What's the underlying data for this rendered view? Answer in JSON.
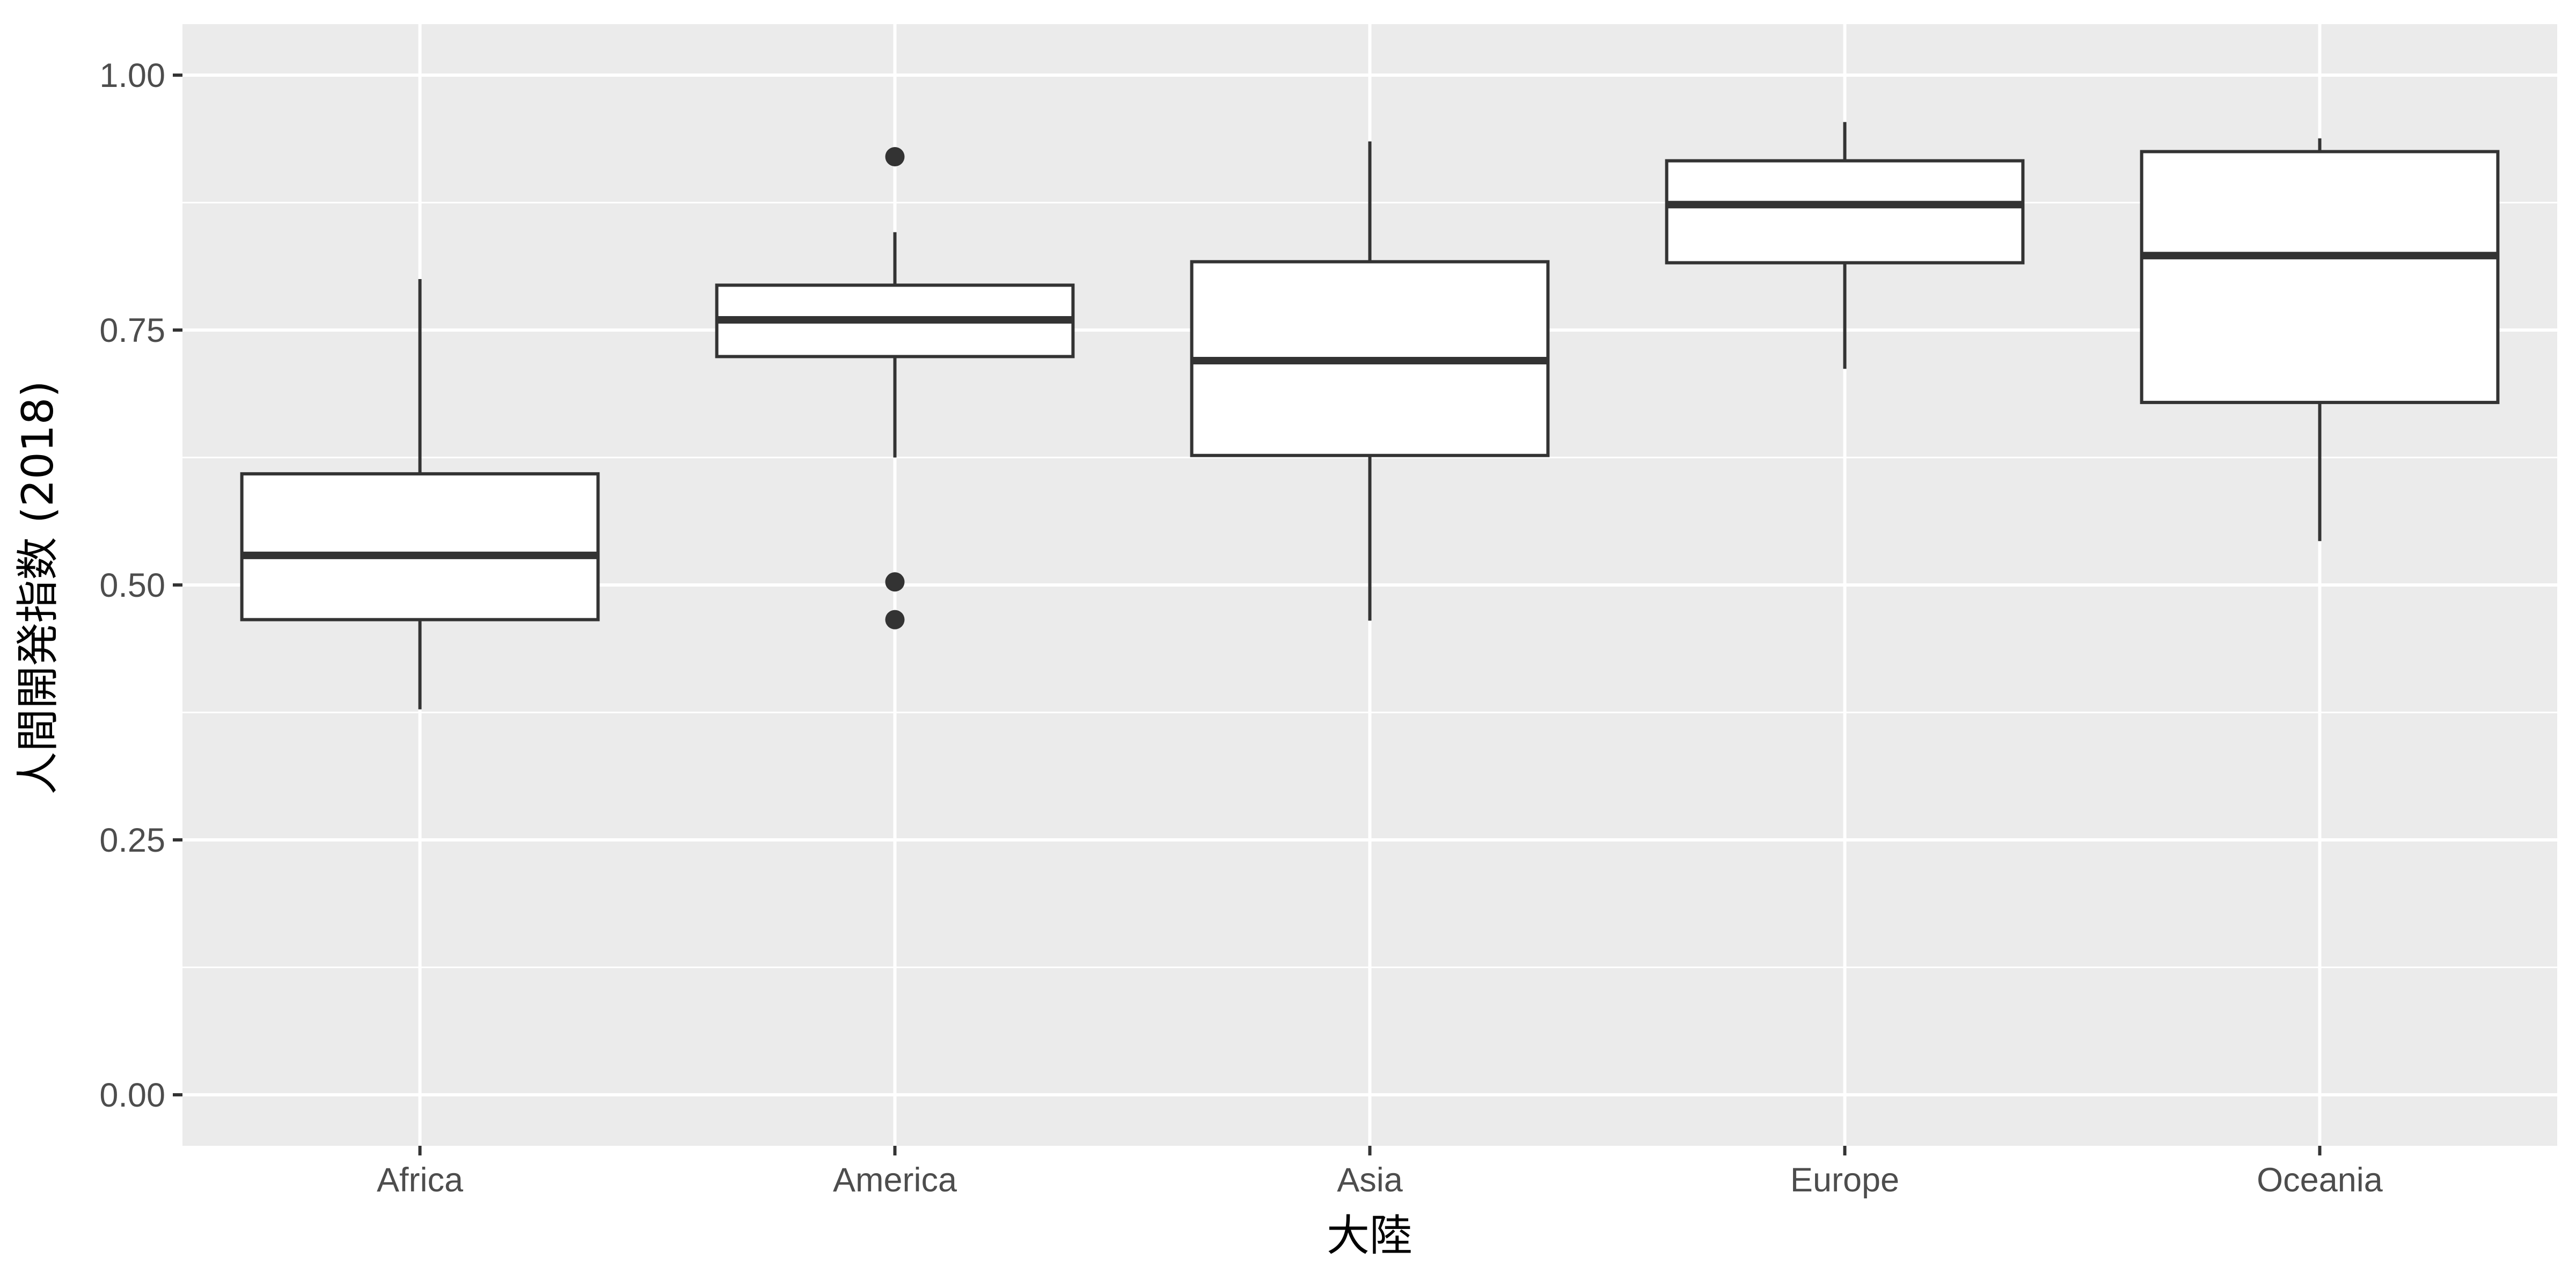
{
  "chart_data": {
    "type": "boxplot",
    "title": "",
    "xlabel": "大陸",
    "ylabel": "人間開発指数 (2018)",
    "categories": [
      "Africa",
      "America",
      "Asia",
      "Europe",
      "Oceania"
    ],
    "boxes": [
      {
        "category": "Africa",
        "whisker_low": 0.378,
        "q1": 0.466,
        "median": 0.529,
        "q3": 0.609,
        "whisker_high": 0.8,
        "outliers": []
      },
      {
        "category": "America",
        "whisker_low": 0.625,
        "q1": 0.724,
        "median": 0.76,
        "q3": 0.794,
        "whisker_high": 0.846,
        "outliers": [
          0.466,
          0.503,
          0.92
        ]
      },
      {
        "category": "Asia",
        "whisker_low": 0.465,
        "q1": 0.627,
        "median": 0.72,
        "q3": 0.817,
        "whisker_high": 0.935,
        "outliers": []
      },
      {
        "category": "Europe",
        "whisker_low": 0.712,
        "q1": 0.816,
        "median": 0.873,
        "q3": 0.916,
        "whisker_high": 0.954,
        "outliers": []
      },
      {
        "category": "Oceania",
        "whisker_low": 0.543,
        "q1": 0.679,
        "median": 0.823,
        "q3": 0.925,
        "whisker_high": 0.938,
        "outliers": []
      }
    ],
    "y_ticks": [
      "0.00",
      "0.25",
      "0.50",
      "0.75",
      "1.00"
    ],
    "y_tick_values": [
      0.0,
      0.25,
      0.5,
      0.75,
      1.0
    ],
    "ylim": [
      -0.05,
      1.05
    ],
    "grid": true,
    "legend": "none",
    "colors": {
      "panel_background": "#ebebeb",
      "grid_line": "#ffffff",
      "box_fill": "#ffffff",
      "box_stroke": "#333333",
      "outlier": "#333333",
      "tick_label": "#4d4d4d",
      "axis_title": "#000000"
    }
  }
}
